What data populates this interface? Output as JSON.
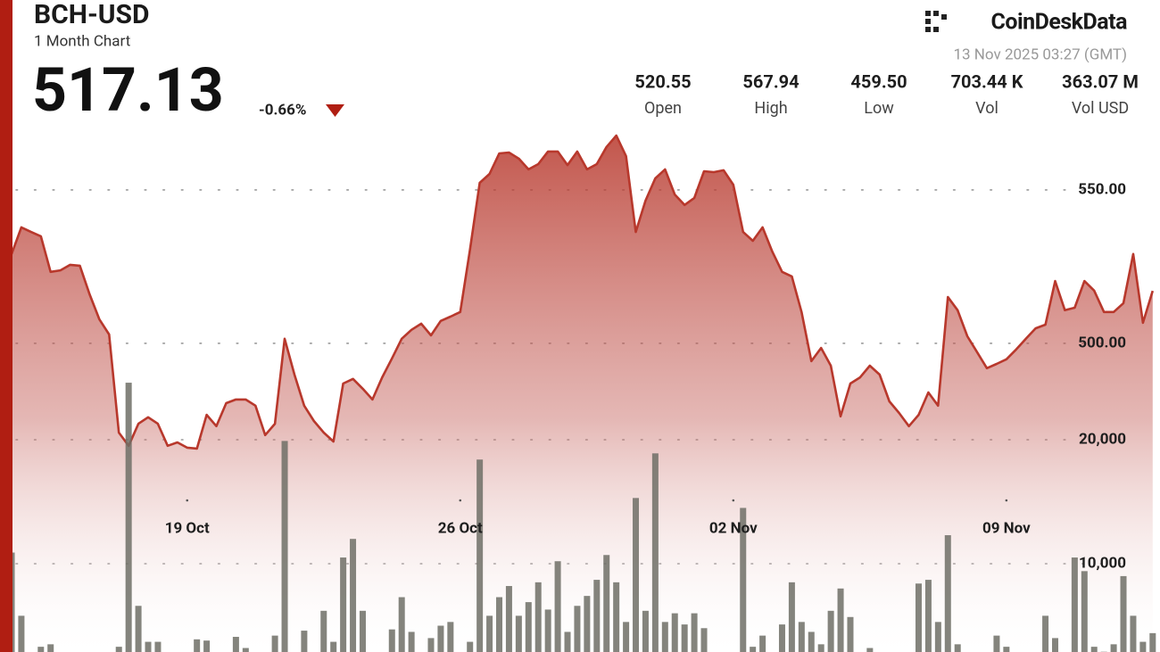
{
  "header": {
    "ticker": "BCH-USD",
    "period": "1 Month Chart",
    "price": 517.13,
    "change": "-0.66%",
    "brand": "CoinDeskData",
    "timestamp": "13 Nov 2025 03:27 (GMT)",
    "stats": [
      {
        "value": "520.55",
        "label": "Open"
      },
      {
        "value": "567.94",
        "label": "High"
      },
      {
        "value": "459.50",
        "label": "Low"
      },
      {
        "value": "703.44 K",
        "label": "Vol"
      },
      {
        "value": "363.07 M",
        "label": "Vol USD"
      }
    ]
  },
  "chart_data": {
    "type": "line",
    "categories": [
      null,
      null,
      null,
      null,
      null,
      null,
      null,
      null,
      null,
      null,
      null,
      null,
      null,
      null,
      null,
      null,
      null,
      null,
      "19 Oct",
      null,
      null,
      null,
      null,
      null,
      null,
      null,
      null,
      null,
      null,
      null,
      null,
      null,
      null,
      null,
      null,
      null,
      null,
      null,
      null,
      null,
      null,
      null,
      null,
      null,
      null,
      null,
      "26 Oct",
      null,
      null,
      null,
      null,
      null,
      null,
      null,
      null,
      null,
      null,
      null,
      null,
      null,
      null,
      null,
      null,
      null,
      null,
      null,
      null,
      null,
      null,
      null,
      null,
      null,
      null,
      null,
      "02 Nov",
      null,
      null,
      null,
      null,
      null,
      null,
      null,
      null,
      null,
      null,
      null,
      null,
      null,
      null,
      null,
      null,
      null,
      null,
      null,
      null,
      null,
      null,
      null,
      null,
      null,
      null,
      null,
      "09 Nov",
      null,
      null,
      null,
      null,
      null,
      null,
      null,
      null,
      null,
      null,
      null,
      null,
      null,
      null,
      null
    ],
    "series": [
      {
        "color": "#b8382c",
        "values": [
          529.1,
          537.8,
          536.3,
          534.9,
          523.3,
          523.8,
          525.6,
          525.3,
          516.0,
          507.8,
          502.9,
          470.9,
          466.6,
          473.8,
          475.9,
          473.8,
          466.6,
          467.7,
          466.0,
          465.7,
          476.7,
          473.0,
          480.5,
          481.7,
          481.7,
          479.7,
          470.1,
          473.8,
          501.5,
          489.8,
          479.7,
          474.7,
          470.9,
          468.0,
          486.9,
          488.4,
          485.2,
          481.7,
          488.9,
          495.1,
          501.5,
          504.4,
          506.4,
          502.6,
          507.3,
          508.7,
          510.2,
          530.5,
          552.3,
          555.2,
          561.9,
          562.2,
          560.2,
          556.7,
          558.4,
          562.5,
          562.5,
          558.1,
          562.5,
          556.7,
          558.4,
          564.0,
          567.7,
          561.0,
          536.3,
          546.5,
          553.8,
          556.7,
          548.5,
          545.1,
          547.4,
          556.1,
          555.8,
          556.4,
          551.7,
          536.3,
          533.4,
          537.8,
          529.9,
          523.3,
          521.8,
          510.2,
          494.2,
          498.5,
          492.7,
          476.2,
          486.9,
          488.9,
          492.7,
          489.8,
          481.1,
          477.3,
          473.0,
          476.7,
          484.0,
          479.7,
          515.1,
          510.8,
          502.3,
          497.1,
          491.9,
          493.3,
          494.8,
          498.0,
          501.5,
          504.9,
          506.1,
          520.3,
          510.8,
          511.6,
          520.3,
          517.2,
          510.2,
          510.2,
          513.1,
          529.1,
          506.7,
          517.1
        ]
      },
      {
        "type": "bar",
        "axis": "y2",
        "color": "#6f6f66",
        "values": [
          10900,
          5800,
          2000,
          3300,
          3500,
          2000,
          2000,
          2000,
          2000,
          2000,
          2000,
          3300,
          24600,
          6600,
          3700,
          3700,
          2000,
          2000,
          2000,
          3900,
          3800,
          2000,
          2000,
          4100,
          3200,
          2000,
          2000,
          4200,
          19900,
          2000,
          4600,
          2000,
          6200,
          3700,
          10500,
          12000,
          6200,
          2000,
          2000,
          4700,
          7300,
          4500,
          2000,
          4000,
          5000,
          5300,
          2000,
          3700,
          18400,
          5800,
          7300,
          8200,
          5800,
          6900,
          8500,
          6300,
          10200,
          4500,
          6600,
          7400,
          8700,
          10700,
          8500,
          5300,
          15300,
          6200,
          18900,
          5300,
          6000,
          5100,
          6000,
          4800,
          2000,
          2000,
          2000,
          14500,
          3300,
          4200,
          2000,
          5100,
          8500,
          5300,
          4500,
          3500,
          6200,
          8000,
          5700,
          2000,
          3200,
          2000,
          2000,
          2000,
          2000,
          8400,
          8700,
          5300,
          12300,
          3500,
          2000,
          2000,
          2000,
          4200,
          3300,
          2000,
          2000,
          2000,
          5800,
          4000,
          2000,
          10500,
          9400,
          3300,
          2900,
          3500,
          9000,
          5800,
          3700,
          4400
        ]
      }
    ],
    "ylim": [
      399.4,
      611.9
    ],
    "yticks": [
      {
        "value": 550,
        "label": "550.00"
      },
      {
        "value": 500,
        "label": "500.00"
      }
    ],
    "y2lim": [
      2878,
      55468
    ],
    "y2ticks": [
      {
        "value": 20000,
        "label": "20,000"
      },
      {
        "value": 10000,
        "label": "10,000"
      }
    ],
    "grid": true
  }
}
